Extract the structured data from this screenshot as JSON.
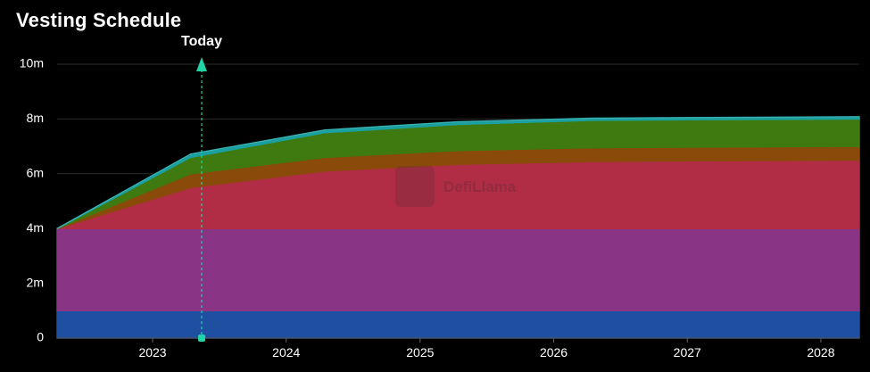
{
  "chart_data": {
    "type": "area",
    "title": "Vesting Schedule",
    "xlabel": "",
    "ylabel": "",
    "stacked": true,
    "x_ticks": [
      "2023",
      "2024",
      "2025",
      "2026",
      "2027",
      "2028"
    ],
    "y_ticks": [
      "0",
      "2m",
      "4m",
      "6m",
      "8m",
      "10m"
    ],
    "ylim": [
      0,
      10000000
    ],
    "xlim": [
      "2022-04-15",
      "2028-04-15"
    ],
    "x": [
      "2022-04-15",
      "2023-04-15",
      "2024-04-15",
      "2025-04-15",
      "2026-04-15",
      "2027-04-15",
      "2028-04-15"
    ],
    "series": [
      {
        "color": "#1f4fa0",
        "values": [
          1000000,
          1000000,
          1000000,
          1000000,
          1000000,
          1000000,
          1000000
        ]
      },
      {
        "color": "#8a3485",
        "values": [
          3000000,
          3000000,
          3000000,
          3000000,
          3000000,
          3000000,
          3000000
        ]
      },
      {
        "color": "#b02d45",
        "values": [
          0,
          1500000,
          2100000,
          2350000,
          2450000,
          2480000,
          2500000
        ]
      },
      {
        "color": "#8a4a0a",
        "values": [
          0,
          500000,
          500000,
          500000,
          500000,
          500000,
          500000
        ]
      },
      {
        "color": "#3e7a10",
        "values": [
          0,
          600000,
          900000,
          950000,
          1000000,
          1000000,
          1000000
        ]
      },
      {
        "color": "#1aa0a0",
        "values": [
          0,
          120000,
          100000,
          100000,
          80000,
          80000,
          80000
        ]
      }
    ],
    "marker": {
      "label": "Today",
      "x": "2023-05-15",
      "color": "#22d3a6"
    },
    "grid": true,
    "watermark": "DefiLlama"
  }
}
